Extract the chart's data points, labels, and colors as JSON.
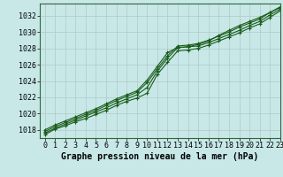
{
  "xlabel": "Graphe pression niveau de la mer (hPa)",
  "xlim": [
    -0.5,
    23
  ],
  "ylim": [
    1017.0,
    1033.5
  ],
  "yticks": [
    1018,
    1020,
    1022,
    1024,
    1026,
    1028,
    1030,
    1032
  ],
  "xticks": [
    0,
    1,
    2,
    3,
    4,
    5,
    6,
    7,
    8,
    9,
    10,
    11,
    12,
    13,
    14,
    15,
    16,
    17,
    18,
    19,
    20,
    21,
    22,
    23
  ],
  "background_color": "#c8e8e8",
  "grid_color": "#b0c8c8",
  "line_color": "#1a5c1a",
  "marker": "+",
  "lines": [
    [
      1017.4,
      1018.1,
      1018.5,
      1019.0,
      1019.4,
      1019.9,
      1020.4,
      1021.0,
      1021.5,
      1021.9,
      1022.5,
      1024.8,
      1026.3,
      1027.7,
      1027.8,
      1028.0,
      1028.4,
      1028.9,
      1029.4,
      1029.9,
      1030.5,
      1031.0,
      1031.8,
      1032.6
    ],
    [
      1017.6,
      1018.2,
      1018.7,
      1019.2,
      1019.7,
      1020.2,
      1020.7,
      1021.3,
      1021.8,
      1022.3,
      1023.2,
      1025.2,
      1026.8,
      1028.1,
      1028.2,
      1028.3,
      1028.7,
      1029.2,
      1029.7,
      1030.2,
      1030.8,
      1031.3,
      1032.1,
      1032.8
    ],
    [
      1017.8,
      1018.4,
      1018.9,
      1019.4,
      1019.9,
      1020.4,
      1021.0,
      1021.6,
      1022.1,
      1022.6,
      1023.8,
      1025.5,
      1027.1,
      1028.3,
      1028.4,
      1028.6,
      1029.0,
      1029.5,
      1030.0,
      1030.6,
      1031.1,
      1031.6,
      1032.4,
      1033.0
    ],
    [
      1018.0,
      1018.6,
      1019.1,
      1019.6,
      1020.1,
      1020.6,
      1021.2,
      1021.8,
      1022.3,
      1022.8,
      1024.1,
      1025.8,
      1027.5,
      1028.1,
      1028.2,
      1028.5,
      1028.9,
      1029.6,
      1030.2,
      1030.8,
      1031.3,
      1031.8,
      1032.4,
      1033.1
    ]
  ],
  "xlabel_fontsize": 7,
  "tick_fontsize": 6,
  "line_width": 0.8,
  "marker_size": 3.5
}
